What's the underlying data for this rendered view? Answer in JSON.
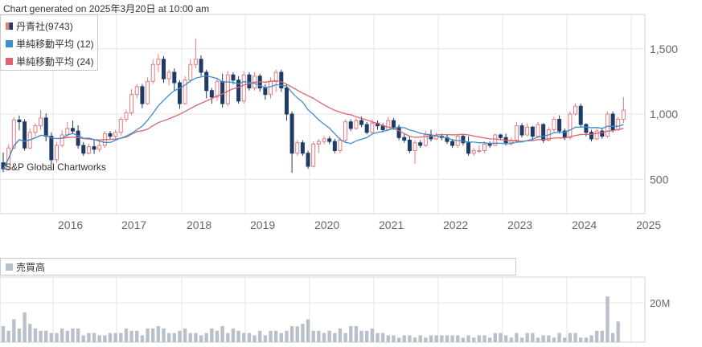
{
  "header": {
    "generated": "Chart generated on 2025年3月20日 at 10:00 am"
  },
  "watermark": "S&P Global Chartworks",
  "colors": {
    "up": "#e57a82",
    "down": "#1f3a66",
    "sma12": "#3d8fcc",
    "sma24": "#d9646e",
    "volume": "#b8c1ca",
    "grid": "#e6e6e6",
    "axis_text": "#666666"
  },
  "legend": {
    "stock": "丹青社(9743)",
    "sma12": "単純移動平均 (12)",
    "sma24": "単純移動平均 (24)"
  },
  "volume_panel": {
    "label": "売買高",
    "axis_label": "20M"
  },
  "chart_data": {
    "type": "candlestick",
    "x_ticks": [
      "2016",
      "2017",
      "2018",
      "2019",
      "2020",
      "2021",
      "2022",
      "2023",
      "2024",
      "2025"
    ],
    "y_ticks": [
      "1,500",
      "1,000",
      "500"
    ],
    "ylim": [
      250,
      1800
    ],
    "interval": "monthly",
    "x_start": "2015-03",
    "candles": [
      [
        627,
        580,
        705,
        555
      ],
      [
        580,
        740,
        770,
        570
      ],
      [
        740,
        955,
        975,
        730
      ],
      [
        955,
        940,
        990,
        875
      ],
      [
        940,
        740,
        960,
        720
      ],
      [
        740,
        860,
        890,
        730
      ],
      [
        860,
        910,
        930,
        830
      ],
      [
        910,
        970,
        1030,
        880
      ],
      [
        970,
        830,
        1005,
        790
      ],
      [
        830,
        650,
        860,
        610
      ],
      [
        650,
        760,
        785,
        625
      ],
      [
        760,
        840,
        875,
        745
      ],
      [
        840,
        890,
        940,
        815
      ],
      [
        890,
        870,
        950,
        845
      ],
      [
        870,
        760,
        915,
        735
      ],
      [
        760,
        700,
        785,
        680
      ],
      [
        700,
        750,
        775,
        690
      ],
      [
        750,
        730,
        800,
        695
      ],
      [
        730,
        760,
        790,
        710
      ],
      [
        760,
        850,
        870,
        740
      ],
      [
        850,
        830,
        870,
        805
      ],
      [
        830,
        860,
        880,
        810
      ],
      [
        860,
        960,
        975,
        835
      ],
      [
        960,
        1010,
        1035,
        940
      ],
      [
        1010,
        1150,
        1190,
        990
      ],
      [
        1150,
        1210,
        1230,
        1120
      ],
      [
        1210,
        1080,
        1230,
        1045
      ],
      [
        1080,
        1250,
        1280,
        1070
      ],
      [
        1250,
        1380,
        1420,
        1230
      ],
      [
        1380,
        1420,
        1460,
        1320
      ],
      [
        1420,
        1270,
        1445,
        1240
      ],
      [
        1270,
        1320,
        1340,
        1220
      ],
      [
        1320,
        1240,
        1350,
        1180
      ],
      [
        1240,
        1080,
        1260,
        1040
      ],
      [
        1080,
        1260,
        1290,
        1070
      ],
      [
        1260,
        1380,
        1420,
        1240
      ],
      [
        1380,
        1420,
        1580,
        1350
      ],
      [
        1420,
        1320,
        1450,
        1290
      ],
      [
        1320,
        1180,
        1340,
        1120
      ],
      [
        1180,
        1130,
        1200,
        1080
      ],
      [
        1130,
        1250,
        1280,
        1100
      ],
      [
        1250,
        1080,
        1310,
        1050
      ],
      [
        1080,
        1300,
        1330,
        1060
      ],
      [
        1300,
        1260,
        1320,
        1230
      ],
      [
        1260,
        1100,
        1290,
        1080
      ],
      [
        1100,
        1300,
        1330,
        1080
      ],
      [
        1300,
        1200,
        1320,
        1180
      ],
      [
        1200,
        1290,
        1320,
        1180
      ],
      [
        1290,
        1200,
        1310,
        1170
      ],
      [
        1200,
        1150,
        1230,
        1110
      ],
      [
        1150,
        1250,
        1280,
        1120
      ],
      [
        1250,
        1320,
        1340,
        1170
      ],
      [
        1320,
        1200,
        1340,
        1170
      ],
      [
        1200,
        1000,
        1230,
        950
      ],
      [
        1000,
        700,
        1020,
        550
      ],
      [
        700,
        780,
        800,
        680
      ],
      [
        780,
        700,
        800,
        680
      ],
      [
        700,
        600,
        720,
        580
      ],
      [
        600,
        770,
        790,
        590
      ],
      [
        770,
        790,
        810,
        700
      ],
      [
        790,
        810,
        830,
        770
      ],
      [
        810,
        790,
        830,
        770
      ],
      [
        790,
        720,
        810,
        700
      ],
      [
        720,
        800,
        820,
        700
      ],
      [
        800,
        940,
        960,
        780
      ],
      [
        940,
        890,
        960,
        870
      ],
      [
        890,
        950,
        970,
        880
      ],
      [
        950,
        920,
        980,
        900
      ],
      [
        920,
        860,
        940,
        845
      ],
      [
        860,
        930,
        960,
        850
      ],
      [
        930,
        910,
        950,
        880
      ],
      [
        910,
        880,
        930,
        860
      ],
      [
        880,
        950,
        980,
        870
      ],
      [
        950,
        900,
        970,
        880
      ],
      [
        900,
        820,
        920,
        800
      ],
      [
        820,
        800,
        850,
        780
      ],
      [
        800,
        720,
        830,
        700
      ],
      [
        720,
        780,
        800,
        620
      ],
      [
        780,
        760,
        800,
        740
      ],
      [
        760,
        840,
        870,
        750
      ],
      [
        840,
        810,
        880,
        790
      ],
      [
        810,
        830,
        860,
        800
      ],
      [
        830,
        820,
        850,
        800
      ],
      [
        820,
        790,
        840,
        770
      ],
      [
        790,
        760,
        810,
        740
      ],
      [
        760,
        830,
        840,
        740
      ],
      [
        830,
        780,
        850,
        760
      ],
      [
        780,
        700,
        830,
        680
      ],
      [
        700,
        720,
        740,
        680
      ],
      [
        720,
        720,
        760,
        700
      ],
      [
        720,
        770,
        790,
        700
      ],
      [
        770,
        760,
        790,
        740
      ],
      [
        760,
        840,
        850,
        755
      ],
      [
        840,
        820,
        850,
        800
      ],
      [
        820,
        780,
        850,
        760
      ],
      [
        780,
        800,
        820,
        760
      ],
      [
        800,
        910,
        940,
        780
      ],
      [
        910,
        840,
        930,
        820
      ],
      [
        840,
        900,
        930,
        830
      ],
      [
        900,
        830,
        910,
        800
      ],
      [
        830,
        920,
        940,
        820
      ],
      [
        920,
        800,
        930,
        780
      ],
      [
        800,
        880,
        900,
        790
      ],
      [
        880,
        960,
        980,
        860
      ],
      [
        960,
        870,
        990,
        850
      ],
      [
        870,
        820,
        890,
        800
      ],
      [
        820,
        1000,
        1020,
        800
      ],
      [
        1000,
        1060,
        1080,
        990
      ],
      [
        1060,
        920,
        1080,
        900
      ],
      [
        920,
        860,
        930,
        830
      ],
      [
        860,
        810,
        880,
        790
      ],
      [
        810,
        870,
        890,
        800
      ],
      [
        870,
        830,
        890,
        810
      ],
      [
        830,
        1000,
        1020,
        820
      ],
      [
        1000,
        880,
        1020,
        860
      ],
      [
        880,
        960,
        980,
        870
      ],
      [
        960,
        1030,
        1130,
        930
      ]
    ],
    "volume": [
      7,
      5,
      10,
      6,
      13,
      8,
      6,
      5,
      5,
      4,
      4,
      6,
      5,
      6,
      6,
      3,
      4,
      4,
      3,
      3,
      4,
      4,
      4,
      6,
      5,
      5,
      3,
      6,
      6,
      7,
      6,
      4,
      4,
      5,
      6,
      4,
      4,
      3,
      4,
      6,
      5,
      7,
      4,
      6,
      5,
      4,
      4,
      3,
      5,
      3,
      5,
      5,
      4,
      5,
      7,
      7,
      8,
      10,
      5,
      5,
      4,
      5,
      4,
      6,
      4,
      7,
      7,
      5,
      5,
      6,
      4,
      4,
      3,
      3,
      2,
      3,
      3,
      2,
      3,
      2,
      3,
      3,
      3,
      3,
      3,
      3,
      2,
      3,
      2,
      3,
      3,
      2,
      4,
      4,
      3,
      2,
      4,
      2,
      4,
      4,
      2,
      3,
      3,
      2,
      4,
      2,
      4,
      4,
      2,
      2,
      3,
      5,
      5,
      20,
      4,
      9
    ]
  }
}
